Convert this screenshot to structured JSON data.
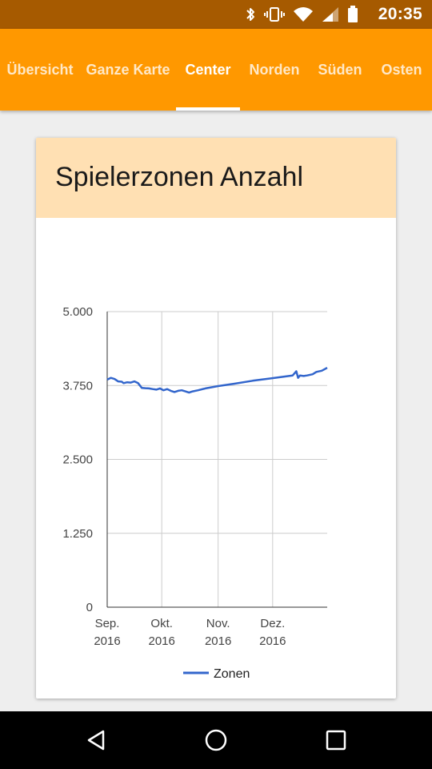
{
  "status_bar": {
    "time": "20:35",
    "icons": [
      "bluetooth-icon",
      "vibrate-icon",
      "wifi-icon",
      "cell-signal-icon",
      "battery-icon"
    ]
  },
  "tabs": [
    {
      "label": "Übersicht",
      "active": false
    },
    {
      "label": "Ganze Karte",
      "active": false
    },
    {
      "label": "Center",
      "active": true
    },
    {
      "label": "Norden",
      "active": false
    },
    {
      "label": "Süden",
      "active": false
    },
    {
      "label": "Osten",
      "active": false
    }
  ],
  "card": {
    "title": "Spielerzonen Anzahl",
    "header_color": "#ffe0b3"
  },
  "colors": {
    "status_bar": "#a65a00",
    "app_bar": "#ff9800",
    "series": "#3366cc"
  },
  "chart_data": {
    "type": "line",
    "title": "Spielerzonen Anzahl",
    "xlabel": "",
    "ylabel": "",
    "x_range": [
      "2016-09-01",
      "2016-12-31"
    ],
    "ylim": [
      0,
      5000
    ],
    "y_ticks": [
      {
        "value": 0,
        "label": "0"
      },
      {
        "value": 1250,
        "label": "1.250"
      },
      {
        "value": 2500,
        "label": "2.500"
      },
      {
        "value": 3750,
        "label": "3.750"
      },
      {
        "value": 5000,
        "label": "5.000"
      }
    ],
    "x_ticks": [
      {
        "date": "2016-09-01",
        "line1": "Sep.",
        "line2": "2016"
      },
      {
        "date": "2016-10-01",
        "line1": "Okt.",
        "line2": "2016"
      },
      {
        "date": "2016-11-01",
        "line1": "Nov.",
        "line2": "2016"
      },
      {
        "date": "2016-12-01",
        "line1": "Dez.",
        "line2": "2016"
      }
    ],
    "grid": true,
    "legend_position": "bottom",
    "series": [
      {
        "name": "Zonen",
        "color": "#3366cc",
        "points": [
          [
            "2016-09-01",
            3850
          ],
          [
            "2016-09-03",
            3880
          ],
          [
            "2016-09-05",
            3860
          ],
          [
            "2016-09-07",
            3820
          ],
          [
            "2016-09-09",
            3815
          ],
          [
            "2016-09-10",
            3790
          ],
          [
            "2016-09-12",
            3805
          ],
          [
            "2016-09-14",
            3800
          ],
          [
            "2016-09-16",
            3820
          ],
          [
            "2016-09-18",
            3790
          ],
          [
            "2016-09-20",
            3710
          ],
          [
            "2016-09-22",
            3705
          ],
          [
            "2016-09-24",
            3700
          ],
          [
            "2016-09-26",
            3690
          ],
          [
            "2016-09-28",
            3680
          ],
          [
            "2016-09-30",
            3700
          ],
          [
            "2016-10-02",
            3670
          ],
          [
            "2016-10-04",
            3690
          ],
          [
            "2016-10-06",
            3660
          ],
          [
            "2016-10-08",
            3640
          ],
          [
            "2016-10-10",
            3660
          ],
          [
            "2016-10-12",
            3670
          ],
          [
            "2016-10-14",
            3650
          ],
          [
            "2016-10-16",
            3630
          ],
          [
            "2016-10-18",
            3650
          ],
          [
            "2016-10-21",
            3670
          ],
          [
            "2016-10-25",
            3700
          ],
          [
            "2016-11-01",
            3740
          ],
          [
            "2016-11-10",
            3780
          ],
          [
            "2016-11-20",
            3830
          ],
          [
            "2016-11-30",
            3870
          ],
          [
            "2016-12-07",
            3900
          ],
          [
            "2016-12-12",
            3920
          ],
          [
            "2016-12-14",
            3990
          ],
          [
            "2016-12-15",
            3880
          ],
          [
            "2016-12-16",
            3920
          ],
          [
            "2016-12-18",
            3910
          ],
          [
            "2016-12-20",
            3920
          ],
          [
            "2016-12-23",
            3940
          ],
          [
            "2016-12-25",
            3980
          ],
          [
            "2016-12-28",
            4000
          ],
          [
            "2016-12-31",
            4050
          ]
        ]
      }
    ]
  }
}
